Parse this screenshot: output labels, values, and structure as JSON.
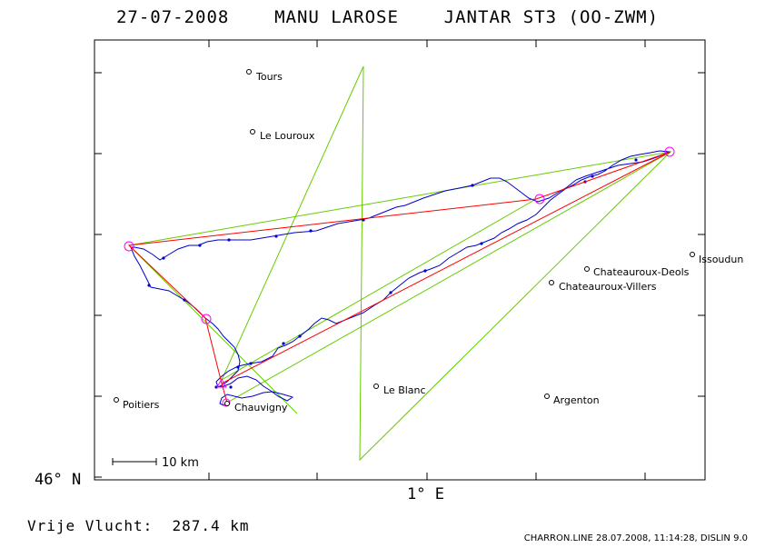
{
  "header": {
    "title": "27-07-2008    MANU LAROSE    JANTAR ST3 (OO-ZWM)"
  },
  "map": {
    "latitude_label": "46° N",
    "longitude_label": "1° E",
    "scale_label": "10 km",
    "places": [
      {
        "name": "Tours"
      },
      {
        "name": "Le Louroux"
      },
      {
        "name": "Issoudun"
      },
      {
        "name": "Chateauroux-Deols"
      },
      {
        "name": "Chateauroux-Villers"
      },
      {
        "name": "Le Blanc"
      },
      {
        "name": "Argenton"
      },
      {
        "name": "Poitiers"
      },
      {
        "name": "Chauvigny"
      }
    ],
    "colors": {
      "track": "#0000cc",
      "task_legs": "#ff0000",
      "sectors": "#66cc00",
      "turnpoints": "#ff00ff"
    }
  },
  "footer": {
    "distance_text": "Vrije Vlucht:  287.4 km",
    "credit": "CHARRON.LINE 28.07.2008, 11:14:28, DISLIN 9.0"
  }
}
